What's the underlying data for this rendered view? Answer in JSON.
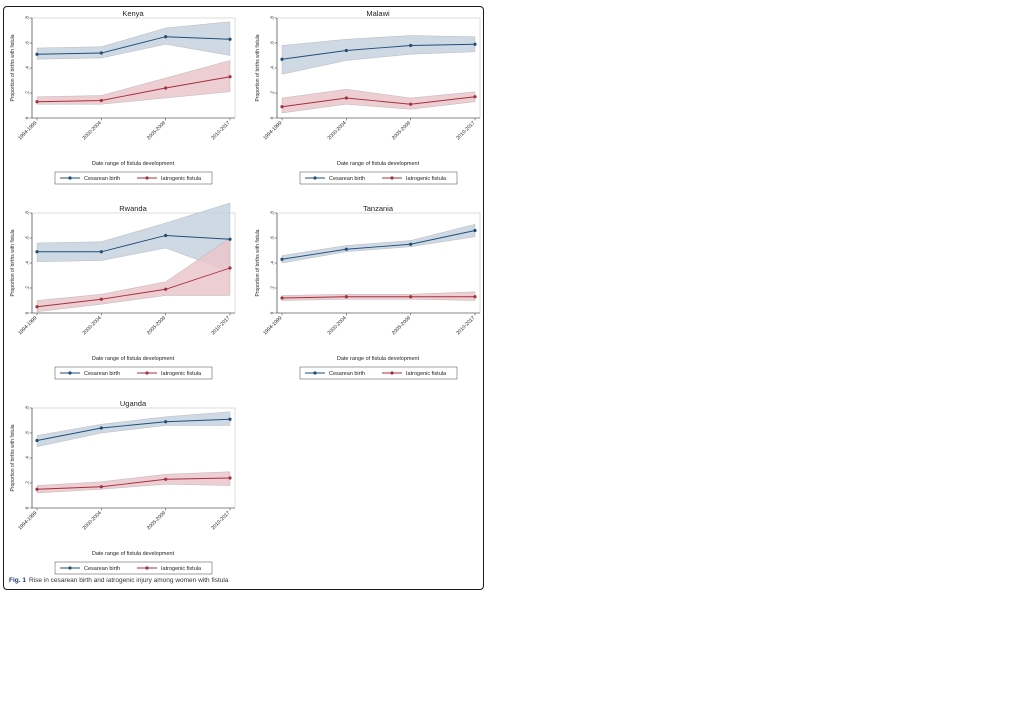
{
  "caption": {
    "label": "Fig. 1",
    "text": "Rise in cesarean birth and iatrogenic injury among women with fistula"
  },
  "colors": {
    "cesarean": "#1f4e79",
    "cesarean_band": "#c7d2df",
    "iatrogenic": "#a5303f",
    "iatrogenic_band": "#eac5ca"
  },
  "chart_data": [
    {
      "type": "line",
      "title": "Kenya",
      "xlabel": "Date range of fistula development",
      "ylabel": "Proportion of births with fistula",
      "categories": [
        "1994-1999",
        "2000-2004",
        "2005-2009",
        "2010-2017"
      ],
      "ylim": [
        0,
        0.8
      ],
      "yticks": [
        "0",
        ".2",
        ".4",
        ".6",
        ".8"
      ],
      "legend_position": "bottom",
      "series": [
        {
          "name": "Cesarean birth",
          "values": [
            0.51,
            0.52,
            0.65,
            0.63
          ],
          "ci_lower": [
            0.47,
            0.48,
            0.59,
            0.5
          ],
          "ci_upper": [
            0.56,
            0.57,
            0.72,
            0.77
          ]
        },
        {
          "name": "Iatrogenic fistula",
          "values": [
            0.13,
            0.14,
            0.24,
            0.33
          ],
          "ci_lower": [
            0.11,
            0.11,
            0.16,
            0.21
          ],
          "ci_upper": [
            0.17,
            0.18,
            0.32,
            0.46
          ]
        }
      ]
    },
    {
      "type": "line",
      "title": "Malawi",
      "xlabel": "Date range of fistula development",
      "ylabel": "Proportion of births with fistula",
      "categories": [
        "1994-1999",
        "2000-2004",
        "2005-2009",
        "2010-2017"
      ],
      "ylim": [
        0,
        0.8
      ],
      "yticks": [
        "0",
        ".2",
        ".4",
        ".6",
        ".8"
      ],
      "legend_position": "bottom",
      "series": [
        {
          "name": "Cesarean birth",
          "values": [
            0.47,
            0.54,
            0.58,
            0.59
          ],
          "ci_lower": [
            0.35,
            0.46,
            0.51,
            0.53
          ],
          "ci_upper": [
            0.58,
            0.63,
            0.66,
            0.65
          ]
        },
        {
          "name": "Iatrogenic fistula",
          "values": [
            0.09,
            0.16,
            0.11,
            0.17
          ],
          "ci_lower": [
            0.04,
            0.11,
            0.07,
            0.13
          ],
          "ci_upper": [
            0.16,
            0.23,
            0.16,
            0.21
          ]
        }
      ]
    },
    {
      "type": "line",
      "title": "Rwanda",
      "xlabel": "Date range of fistula development",
      "ylabel": "Proportion of births with fistula",
      "categories": [
        "1994-1999",
        "2000-2004",
        "2005-2009",
        "2010-2017"
      ],
      "ylim": [
        0,
        0.8
      ],
      "yticks": [
        "0",
        ".2",
        ".4",
        ".6",
        ".8"
      ],
      "legend_position": "bottom",
      "series": [
        {
          "name": "Cesarean birth",
          "values": [
            0.49,
            0.49,
            0.62,
            0.59
          ],
          "ci_lower": [
            0.41,
            0.42,
            0.52,
            0.33
          ],
          "ci_upper": [
            0.56,
            0.57,
            0.72,
            0.88
          ]
        },
        {
          "name": "Iatrogenic fistula",
          "values": [
            0.05,
            0.11,
            0.19,
            0.36
          ],
          "ci_lower": [
            0.01,
            0.07,
            0.14,
            0.14
          ],
          "ci_upper": [
            0.1,
            0.15,
            0.25,
            0.6
          ]
        }
      ]
    },
    {
      "type": "line",
      "title": "Tanzania",
      "xlabel": "Date range of fistula development",
      "ylabel": "Proportion of births with fistula",
      "categories": [
        "1994-1999",
        "2000-2004",
        "2005-2009",
        "2010-2017"
      ],
      "ylim": [
        0,
        0.8
      ],
      "yticks": [
        "0",
        ".2",
        ".4",
        ".6",
        ".8"
      ],
      "legend_position": "bottom",
      "series": [
        {
          "name": "Cesarean birth",
          "values": [
            0.43,
            0.51,
            0.55,
            0.66
          ],
          "ci_lower": [
            0.4,
            0.49,
            0.53,
            0.61
          ],
          "ci_upper": [
            0.46,
            0.54,
            0.58,
            0.71
          ]
        },
        {
          "name": "Iatrogenic fistula",
          "values": [
            0.12,
            0.13,
            0.13,
            0.13
          ],
          "ci_lower": [
            0.1,
            0.11,
            0.11,
            0.1
          ],
          "ci_upper": [
            0.14,
            0.15,
            0.15,
            0.17
          ]
        }
      ]
    },
    {
      "type": "line",
      "title": "Uganda",
      "xlabel": "Date range of fistula development",
      "ylabel": "Proportion of births with fistula",
      "categories": [
        "1994-1999",
        "2000-2004",
        "2005-2009",
        "2010-2017"
      ],
      "ylim": [
        0,
        0.8
      ],
      "yticks": [
        "0",
        ".2",
        ".4",
        ".6",
        ".8"
      ],
      "legend_position": "bottom",
      "series": [
        {
          "name": "Cesarean birth",
          "values": [
            0.54,
            0.64,
            0.69,
            0.71
          ],
          "ci_lower": [
            0.49,
            0.6,
            0.66,
            0.66
          ],
          "ci_upper": [
            0.58,
            0.67,
            0.73,
            0.77
          ]
        },
        {
          "name": "Iatrogenic fistula",
          "values": [
            0.15,
            0.17,
            0.23,
            0.24
          ],
          "ci_lower": [
            0.12,
            0.15,
            0.19,
            0.18
          ],
          "ci_upper": [
            0.18,
            0.21,
            0.27,
            0.29
          ]
        }
      ]
    }
  ]
}
